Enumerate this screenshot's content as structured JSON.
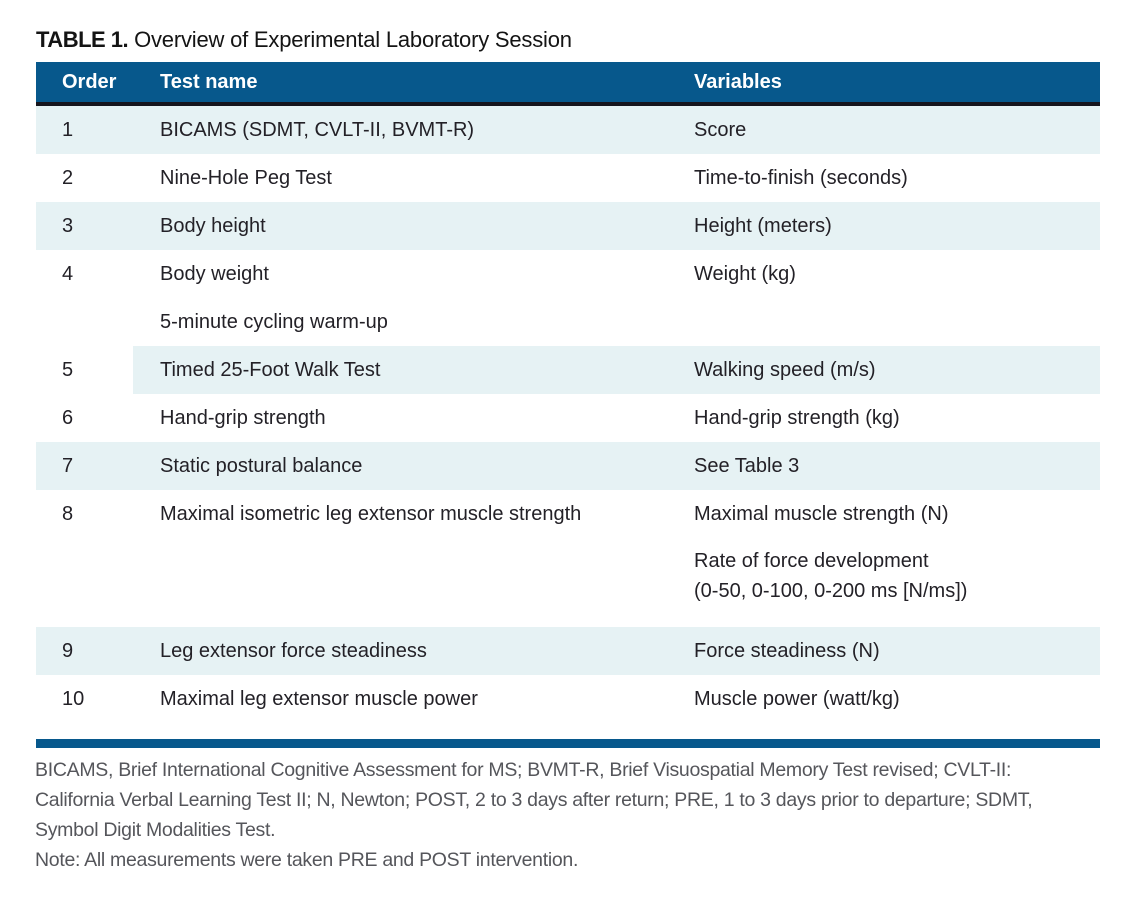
{
  "title": {
    "label": "TABLE 1.",
    "caption": "Overview of Experimental Laboratory Session"
  },
  "table": {
    "columns": [
      "Order",
      "Test name",
      "Variables"
    ],
    "rows": [
      {
        "order": "1",
        "test": "BICAMS (SDMT, CVLT-II, BVMT-R)",
        "variables": [
          "Score"
        ],
        "shaded": true,
        "partial": false
      },
      {
        "order": "2",
        "test": "Nine-Hole Peg Test",
        "variables": [
          "Time-to-finish (seconds)"
        ],
        "shaded": false,
        "partial": false
      },
      {
        "order": "3",
        "test": "Body height",
        "variables": [
          "Height (meters)"
        ],
        "shaded": true,
        "partial": false
      },
      {
        "order": "4",
        "test": "Body weight",
        "variables": [
          "Weight (kg)"
        ],
        "shaded": false,
        "partial": false
      },
      {
        "order": "",
        "test": "5-minute cycling warm-up",
        "variables": [],
        "shaded": false,
        "partial": false
      },
      {
        "order": "5",
        "test": "Timed 25-Foot Walk Test",
        "variables": [
          "Walking speed (m/s)"
        ],
        "shaded": true,
        "partial": true
      },
      {
        "order": "6",
        "test": "Hand-grip strength",
        "variables": [
          "Hand-grip strength (kg)"
        ],
        "shaded": false,
        "partial": false
      },
      {
        "order": "7",
        "test": "Static postural balance",
        "variables": [
          "See Table 3"
        ],
        "shaded": true,
        "partial": false
      },
      {
        "order": "8",
        "test": "Maximal isometric leg extensor muscle strength",
        "variables": [
          "Maximal muscle strength (N)",
          "Rate of force development\n(0-50, 0-100, 0-200 ms [N/ms])"
        ],
        "shaded": false,
        "partial": false
      },
      {
        "order": "9",
        "test": "Leg extensor force steadiness",
        "variables": [
          "Force steadiness (N)"
        ],
        "shaded": true,
        "partial": false
      },
      {
        "order": "10",
        "test": "Maximal leg extensor muscle power",
        "variables": [
          "Muscle power (watt/kg)"
        ],
        "shaded": false,
        "partial": false
      }
    ]
  },
  "footnote": {
    "lines": [
      "BICAMS, Brief International Cognitive Assessment for MS; BVMT-R, Brief Visuospatial Memory Test revised; CVLT-II:",
      "California Verbal Learning Test II; N, Newton; POST, 2 to 3 days after return; PRE, 1 to 3 days prior to departure; SDMT,",
      "Symbol Digit Modalities Test."
    ],
    "note": "Note: All measurements were taken PRE and POST intervention."
  },
  "colors": {
    "header_blue": "#07588c",
    "row_blue": "#e6f2f4",
    "rule_black": "#16151d",
    "body_text": "#232127",
    "footnote_gray": "#55565b"
  }
}
